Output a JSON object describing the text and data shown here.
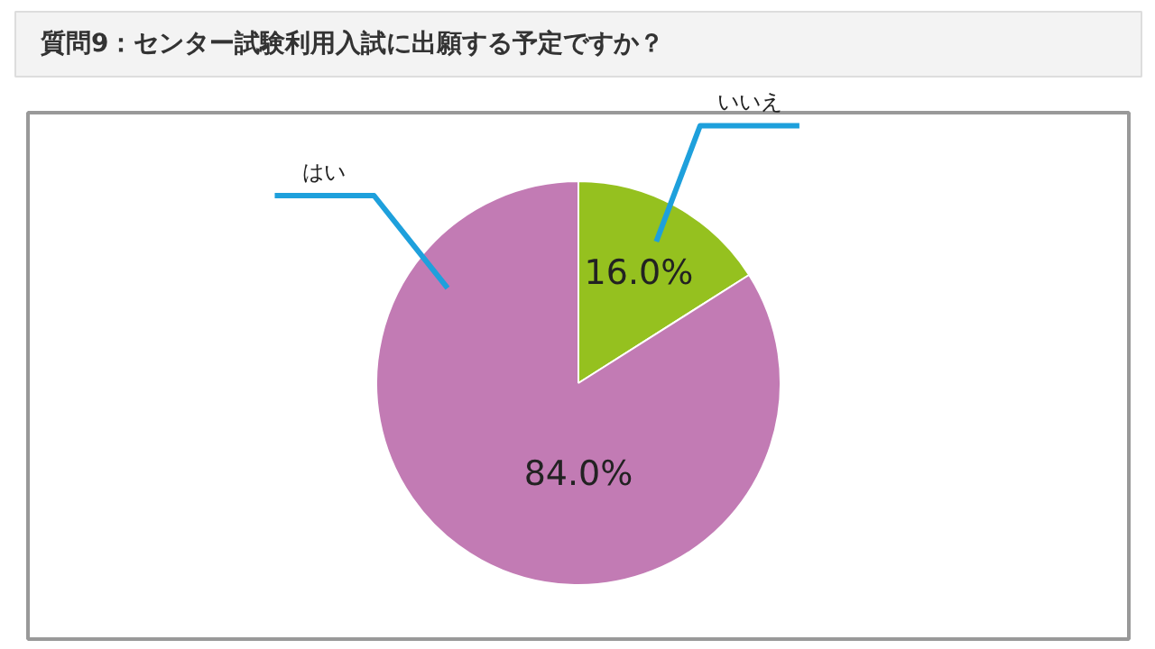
{
  "chart_data": {
    "type": "pie",
    "title": "質問9：センター試験利用入試に出願する予定ですか？",
    "categories": [
      "いいえ",
      "はい"
    ],
    "values": [
      16.0,
      84.0
    ],
    "colors": [
      "#95c11f",
      "#c27bb4"
    ],
    "value_labels": [
      "16.0%",
      "84.0%"
    ],
    "legend": false
  }
}
